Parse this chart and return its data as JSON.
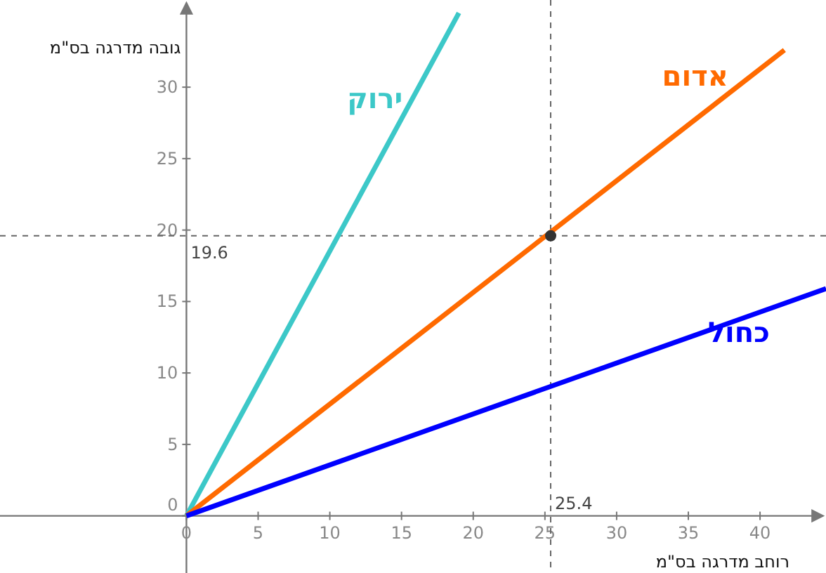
{
  "chart_data": {
    "type": "line",
    "xlabel": "רוחב מדרגה בס\"מ",
    "ylabel": "גובה מדרגה בס\"מ",
    "xlim": [
      -13,
      44.6
    ],
    "ylim": [
      -4,
      36.1
    ],
    "xticks": [
      0,
      5,
      10,
      15,
      20,
      25,
      30,
      35,
      40
    ],
    "yticks": [
      0,
      5,
      10,
      15,
      20,
      25,
      30
    ],
    "series": [
      {
        "name": "ירוק",
        "color": "#3cc8c8",
        "x": [
          0,
          19.0
        ],
        "values": [
          0,
          35.2
        ]
      },
      {
        "name": "אדום",
        "color": "#ff6a00",
        "x": [
          0,
          41.7
        ],
        "values": [
          0,
          32.6
        ]
      },
      {
        "name": "כחול",
        "color": "#0000ff",
        "x": [
          0,
          44.6
        ],
        "values": [
          0,
          15.9
        ]
      },
      {
        "type": "scatter",
        "color": "#333333",
        "marker": "circle",
        "x": [
          25.4
        ],
        "values": [
          19.6
        ]
      }
    ],
    "ref_lines": [
      {
        "axis": "x",
        "value": 25.4,
        "label": "25.4",
        "line_style": "dashed",
        "color": "#666666"
      },
      {
        "axis": "y",
        "value": 19.6,
        "label": "19.6",
        "line_style": "dashed",
        "color": "#666666"
      }
    ],
    "grid": false,
    "line_style": "solid",
    "marker": "none"
  }
}
